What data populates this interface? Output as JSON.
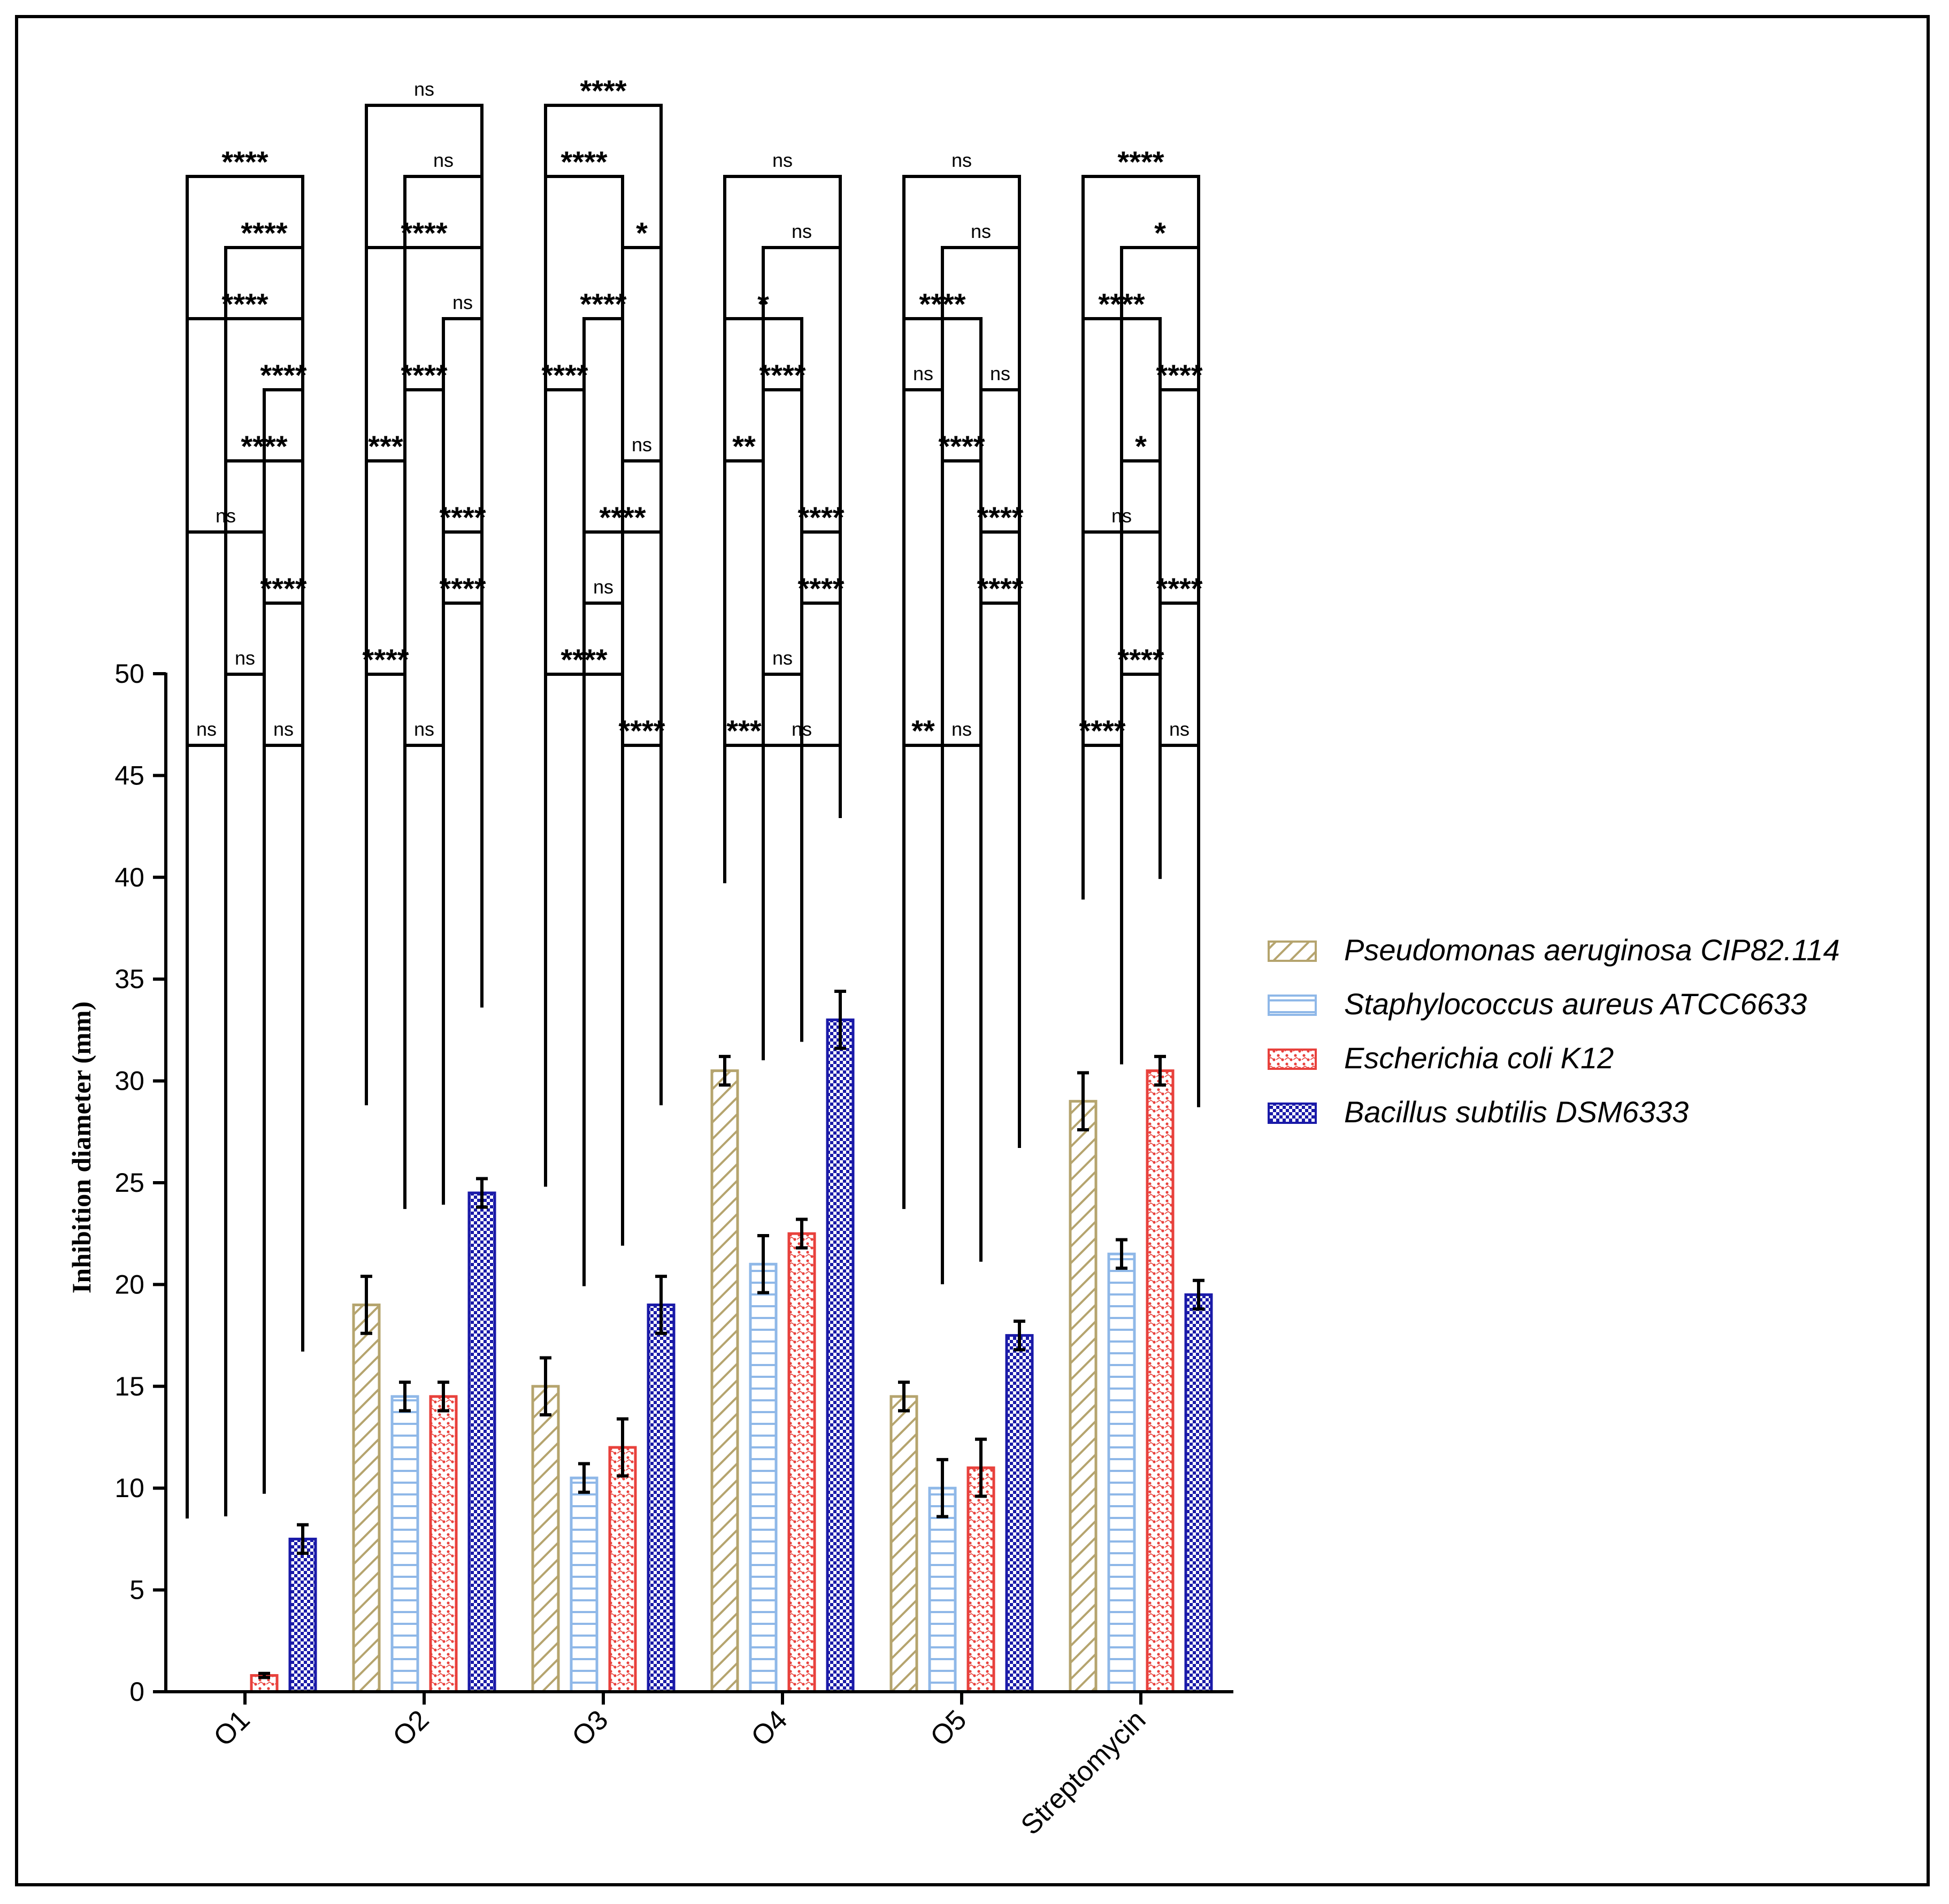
{
  "chart_data": {
    "type": "bar",
    "title": "",
    "xlabel": "",
    "ylabel": "Inhibition diameter (mm)",
    "ylim": [
      0,
      50
    ],
    "yticks": [
      0,
      5,
      10,
      15,
      20,
      25,
      30,
      35,
      40,
      45,
      50
    ],
    "categories": [
      "O1",
      "O2",
      "O3",
      "O4",
      "O5",
      "Streptomycin"
    ],
    "series": [
      {
        "name": "Pseudomonas aeruginosa CIP82.114",
        "color": "#b5a46e",
        "pattern": "diagonal-hatch",
        "values": [
          0,
          19,
          15,
          30.5,
          14.5,
          29
        ],
        "errors": [
          0,
          1.4,
          1.4,
          0.7,
          0.7,
          1.4
        ]
      },
      {
        "name": "Staphylococcus aureus ATCC6633",
        "color": "#8fb8e8",
        "pattern": "horizontal-lines",
        "values": [
          0,
          14.5,
          10.5,
          21,
          10,
          21.5
        ],
        "errors": [
          0,
          0.7,
          0.7,
          1.4,
          1.4,
          0.7
        ]
      },
      {
        "name": "Escherichia coli K12",
        "color": "#e8413c",
        "pattern": "dotted",
        "values": [
          0.8,
          14.5,
          12,
          22.5,
          11,
          30.5
        ],
        "errors": [
          0.1,
          0.7,
          1.4,
          0.7,
          1.4,
          0.7
        ]
      },
      {
        "name": "Bacillus subtilis DSM6333",
        "color": "#1a1aa8",
        "pattern": "checker",
        "values": [
          7.5,
          24.5,
          19,
          33,
          17.5,
          19.5
        ],
        "errors": [
          0.7,
          0.7,
          1.4,
          1.4,
          0.7,
          0.7
        ]
      }
    ],
    "legend_position": "right",
    "significance": [
      {
        "group": "O1",
        "pairs": [
          {
            "a": 0,
            "b": 1,
            "label": "ns",
            "level": 1
          },
          {
            "a": 2,
            "b": 3,
            "label": "ns",
            "level": 1
          },
          {
            "a": 1,
            "b": 2,
            "label": "ns",
            "level": 2
          },
          {
            "a": 2,
            "b": 3,
            "label": "****",
            "level": 3
          },
          {
            "a": 0,
            "b": 2,
            "label": "ns",
            "level": 4
          },
          {
            "a": 1,
            "b": 3,
            "label": "****",
            "level": 5
          },
          {
            "a": 2,
            "b": 3,
            "label": "****",
            "level": 6
          },
          {
            "a": 0,
            "b": 3,
            "label": "****",
            "level": 7
          },
          {
            "a": 1,
            "b": 3,
            "label": "****",
            "level": 8
          },
          {
            "a": 0,
            "b": 3,
            "label": "****",
            "level": 9
          }
        ]
      },
      {
        "group": "O2",
        "pairs": [
          {
            "a": 1,
            "b": 2,
            "label": "ns",
            "level": 1
          },
          {
            "a": 0,
            "b": 1,
            "label": "****",
            "level": 2
          },
          {
            "a": 2,
            "b": 3,
            "label": "****",
            "level": 3
          },
          {
            "a": 2,
            "b": 3,
            "label": "****",
            "level": 4
          },
          {
            "a": 0,
            "b": 1,
            "label": "***",
            "level": 5
          },
          {
            "a": 1,
            "b": 2,
            "label": "****",
            "level": 6
          },
          {
            "a": 2,
            "b": 3,
            "label": "ns",
            "level": 7
          },
          {
            "a": 0,
            "b": 3,
            "label": "****",
            "level": 8
          },
          {
            "a": 1,
            "b": 3,
            "label": "ns",
            "level": 9
          },
          {
            "a": 0,
            "b": 3,
            "label": "ns",
            "level": 10
          }
        ]
      },
      {
        "group": "O3",
        "pairs": [
          {
            "a": 2,
            "b": 3,
            "label": "****",
            "level": 1
          },
          {
            "a": 0,
            "b": 2,
            "label": "****",
            "level": 2
          },
          {
            "a": 1,
            "b": 2,
            "label": "ns",
            "level": 3
          },
          {
            "a": 1,
            "b": 3,
            "label": "****",
            "level": 4
          },
          {
            "a": 2,
            "b": 3,
            "label": "ns",
            "level": 5
          },
          {
            "a": 0,
            "b": 1,
            "label": "****",
            "level": 6
          },
          {
            "a": 1,
            "b": 2,
            "label": "****",
            "level": 7
          },
          {
            "a": 2,
            "b": 3,
            "label": "*",
            "level": 8
          },
          {
            "a": 0,
            "b": 2,
            "label": "****",
            "level": 9
          },
          {
            "a": 0,
            "b": 3,
            "label": "****",
            "level": 10
          }
        ]
      },
      {
        "group": "O4",
        "pairs": [
          {
            "a": 0,
            "b": 1,
            "label": "***",
            "level": 1
          },
          {
            "a": 1,
            "b": 3,
            "label": "ns",
            "level": 1
          },
          {
            "a": 1,
            "b": 2,
            "label": "ns",
            "level": 2
          },
          {
            "a": 2,
            "b": 3,
            "label": "****",
            "level": 3
          },
          {
            "a": 2,
            "b": 3,
            "label": "****",
            "level": 4
          },
          {
            "a": 0,
            "b": 1,
            "label": "**",
            "level": 5
          },
          {
            "a": 1,
            "b": 2,
            "label": "****",
            "level": 6
          },
          {
            "a": 0,
            "b": 2,
            "label": "*",
            "level": 7
          },
          {
            "a": 1,
            "b": 3,
            "label": "ns",
            "level": 8
          },
          {
            "a": 0,
            "b": 3,
            "label": "ns",
            "level": 9
          }
        ]
      },
      {
        "group": "O5",
        "pairs": [
          {
            "a": 0,
            "b": 1,
            "label": "**",
            "level": 1
          },
          {
            "a": 1,
            "b": 2,
            "label": "ns",
            "level": 1
          },
          {
            "a": 2,
            "b": 3,
            "label": "****",
            "level": 3
          },
          {
            "a": 2,
            "b": 3,
            "label": "****",
            "level": 4
          },
          {
            "a": 1,
            "b": 2,
            "label": "****",
            "level": 5
          },
          {
            "a": 0,
            "b": 1,
            "label": "ns",
            "level": 6
          },
          {
            "a": 2,
            "b": 3,
            "label": "ns",
            "level": 6
          },
          {
            "a": 0,
            "b": 2,
            "label": "****",
            "level": 7
          },
          {
            "a": 1,
            "b": 3,
            "label": "ns",
            "level": 8
          },
          {
            "a": 0,
            "b": 3,
            "label": "ns",
            "level": 9
          }
        ]
      },
      {
        "group": "Streptomycin",
        "pairs": [
          {
            "a": 0,
            "b": 1,
            "label": "****",
            "level": 1
          },
          {
            "a": 2,
            "b": 3,
            "label": "ns",
            "level": 1
          },
          {
            "a": 1,
            "b": 2,
            "label": "****",
            "level": 2
          },
          {
            "a": 2,
            "b": 3,
            "label": "****",
            "level": 3
          },
          {
            "a": 0,
            "b": 2,
            "label": "ns",
            "level": 4
          },
          {
            "a": 1,
            "b": 2,
            "label": "*",
            "level": 5
          },
          {
            "a": 2,
            "b": 3,
            "label": "****",
            "level": 6
          },
          {
            "a": 0,
            "b": 2,
            "label": "****",
            "level": 7
          },
          {
            "a": 1,
            "b": 3,
            "label": "*",
            "level": 8
          },
          {
            "a": 0,
            "b": 3,
            "label": "****",
            "level": 9
          }
        ]
      }
    ]
  }
}
